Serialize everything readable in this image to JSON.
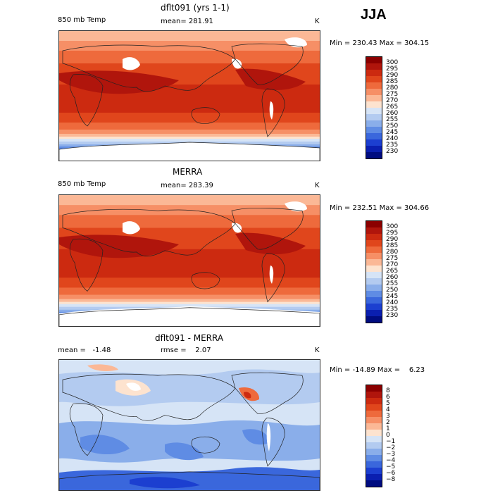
{
  "season": "JJA",
  "panels": [
    {
      "id": "model",
      "title": "dflt091 (yrs 1-1)",
      "left_label": "850 mb Temp",
      "stat1": "mean= 281.91",
      "stat2": "",
      "units": "K",
      "minmax": "Min = 230.43 Max = 304.15",
      "colorbar": {
        "labels": [
          "300",
          "295",
          "290",
          "285",
          "280",
          "275",
          "270",
          "265",
          "260",
          "255",
          "250",
          "245",
          "240",
          "235",
          "230"
        ],
        "colors": [
          "#8b0000",
          "#b0150c",
          "#cc2a10",
          "#e0461c",
          "#ee6a3c",
          "#f68f66",
          "#fbb896",
          "#fde3cf",
          "#d6e4f6",
          "#b3cbf0",
          "#8aaeea",
          "#5f8ce4",
          "#3a67dc",
          "#1c3fd0",
          "#0a1fb0",
          "#000c80"
        ]
      },
      "continents_white": true
    },
    {
      "id": "obs",
      "title": "MERRA",
      "left_label": "850 mb Temp",
      "stat1": "mean= 283.39",
      "stat2": "",
      "units": "K",
      "minmax": "Min = 232.51 Max = 304.66",
      "colorbar": {
        "labels": [
          "300",
          "295",
          "290",
          "285",
          "280",
          "275",
          "270",
          "265",
          "260",
          "255",
          "250",
          "245",
          "240",
          "235",
          "230"
        ],
        "colors": [
          "#8b0000",
          "#b0150c",
          "#cc2a10",
          "#e0461c",
          "#ee6a3c",
          "#f68f66",
          "#fbb896",
          "#fde3cf",
          "#d6e4f6",
          "#b3cbf0",
          "#8aaeea",
          "#5f8ce4",
          "#3a67dc",
          "#1c3fd0",
          "#0a1fb0",
          "#000c80"
        ]
      },
      "continents_white": true
    },
    {
      "id": "diff",
      "title": "dflt091 - MERRA",
      "left_label": "mean =   -1.48",
      "stat1": "rmse =    2.07",
      "stat2": "",
      "units": "K",
      "minmax": "Min = -14.89 Max =    6.23",
      "colorbar": {
        "labels": [
          "8",
          "6",
          "5",
          "4",
          "3",
          "2",
          "1",
          "0",
          "−1",
          "−2",
          "−3",
          "−4",
          "−5",
          "−6",
          "−8"
        ],
        "colors": [
          "#8b0000",
          "#b0150c",
          "#cc2a10",
          "#e0461c",
          "#ee6a3c",
          "#f68f66",
          "#fbb896",
          "#fde3cf",
          "#d6e4f6",
          "#b3cbf0",
          "#8aaeea",
          "#5f8ce4",
          "#3a67dc",
          "#1c3fd0",
          "#0a1fb0",
          "#000c80"
        ]
      },
      "continents_white": false
    }
  ]
}
